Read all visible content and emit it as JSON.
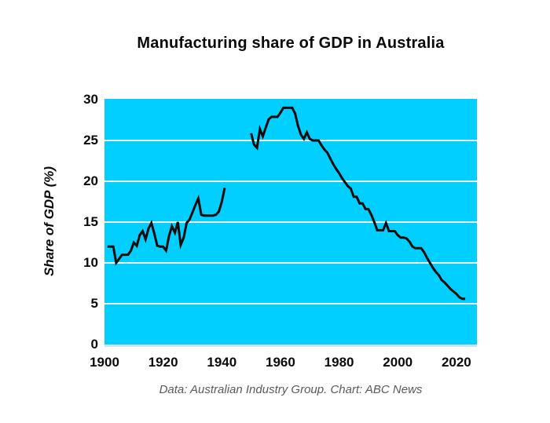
{
  "header": {
    "title": "Manufacturing share of GDP in Australia"
  },
  "footer": {
    "caption": "Data: Australian Industry Group. Chart: ABC News"
  },
  "chart_data": {
    "type": "line",
    "title": "Manufacturing share of GDP in Australia",
    "xlabel": "",
    "ylabel": "Share of GDP (%)",
    "xlim": [
      1900,
      2027
    ],
    "ylim": [
      0,
      30.1
    ],
    "xticks": [
      1900,
      1920,
      1940,
      1960,
      1980,
      2000,
      2020
    ],
    "yticks": [
      0,
      5,
      10,
      15,
      20,
      25,
      30
    ],
    "grid": "horizontal-white-lines",
    "legend_position": "none",
    "annotation": "data gap during World War II years (1942-1949)",
    "colors": {
      "plot_background": "#00CFFF",
      "line": "#0b0b0b",
      "gridline": "#f2f8fa",
      "page_background": "#ffffff",
      "caption_text": "#5a5a5a",
      "plot_shadow": "#d7e1e5"
    },
    "series": [
      {
        "name": "pre-war segment (1901-1941)",
        "x": [
          1901,
          1902,
          1903,
          1904,
          1905,
          1906,
          1907,
          1908,
          1909,
          1910,
          1911,
          1912,
          1913,
          1914,
          1915,
          1916,
          1917,
          1918,
          1919,
          1920,
          1921,
          1922,
          1923,
          1924,
          1925,
          1926,
          1927,
          1928,
          1929,
          1930,
          1931,
          1932,
          1933,
          1934,
          1935,
          1936,
          1937,
          1938,
          1939,
          1940,
          1941
        ],
        "values": [
          12.0,
          12.0,
          12.0,
          10.0,
          10.5,
          11.0,
          11.0,
          11.0,
          11.5,
          12.5,
          12.1,
          13.4,
          13.9,
          12.9,
          14.2,
          14.9,
          13.6,
          12.1,
          12.0,
          12.0,
          11.5,
          13.3,
          14.5,
          13.7,
          15.0,
          12.2,
          13.1,
          14.9,
          15.3,
          16.2,
          17.1,
          17.9,
          15.9,
          15.8,
          15.8,
          15.8,
          15.8,
          15.9,
          16.3,
          17.5,
          19.2
        ]
      },
      {
        "name": "post-war segment (1950-2023)",
        "x": [
          1950,
          1951,
          1952,
          1953,
          1954,
          1955,
          1956,
          1957,
          1958,
          1959,
          1960,
          1961,
          1962,
          1963,
          1964,
          1965,
          1966,
          1967,
          1968,
          1969,
          1970,
          1971,
          1972,
          1973,
          1974,
          1975,
          1976,
          1977,
          1978,
          1979,
          1980,
          1981,
          1982,
          1983,
          1984,
          1985,
          1986,
          1987,
          1988,
          1989,
          1990,
          1991,
          1992,
          1993,
          1994,
          1995,
          1996,
          1997,
          1998,
          1999,
          2000,
          2001,
          2002,
          2003,
          2004,
          2005,
          2006,
          2007,
          2008,
          2009,
          2010,
          2011,
          2012,
          2013,
          2014,
          2015,
          2016,
          2017,
          2018,
          2019,
          2020,
          2021,
          2022,
          2023
        ],
        "values": [
          25.9,
          24.5,
          24.1,
          26.4,
          25.5,
          26.6,
          27.6,
          27.9,
          27.9,
          27.9,
          28.4,
          29.0,
          29.0,
          29.0,
          29.0,
          28.3,
          26.8,
          25.7,
          25.2,
          26.0,
          25.2,
          25.0,
          25.0,
          25.0,
          24.4,
          23.9,
          23.5,
          22.8,
          22.1,
          21.5,
          21.0,
          20.4,
          19.9,
          19.4,
          19.1,
          18.1,
          18.1,
          17.3,
          17.3,
          16.6,
          16.6,
          15.9,
          15.0,
          14.0,
          14.0,
          14.0,
          14.9,
          13.9,
          13.9,
          13.9,
          13.4,
          13.1,
          13.1,
          13.0,
          12.6,
          12.0,
          11.8,
          11.8,
          11.8,
          11.3,
          10.6,
          10.0,
          9.4,
          8.9,
          8.5,
          7.9,
          7.6,
          7.2,
          6.8,
          6.5,
          6.2,
          5.8,
          5.6,
          5.6
        ]
      }
    ]
  }
}
